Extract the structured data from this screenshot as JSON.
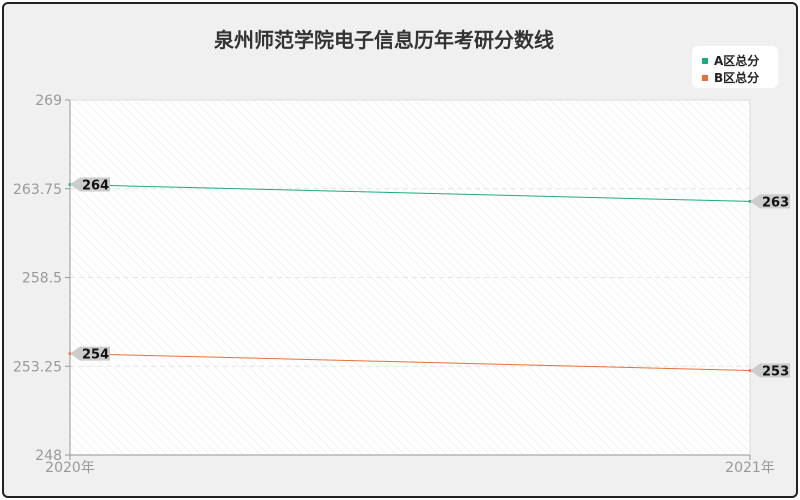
{
  "chart_data": {
    "type": "line",
    "title": "泉州师范学院电子信息历年考研分数线",
    "categories": [
      "2020年",
      "2021年"
    ],
    "series": [
      {
        "name": "A区总分",
        "values": [
          264,
          263
        ],
        "color": "#1aaf7a"
      },
      {
        "name": "B区总分",
        "values": [
          254,
          253
        ],
        "color": "#e8703a"
      }
    ],
    "ylim": [
      248,
      269
    ],
    "yticks": [
      "269",
      "263.75",
      "258.5",
      "253.25",
      "248"
    ],
    "legend": "top-right",
    "grid": true
  }
}
